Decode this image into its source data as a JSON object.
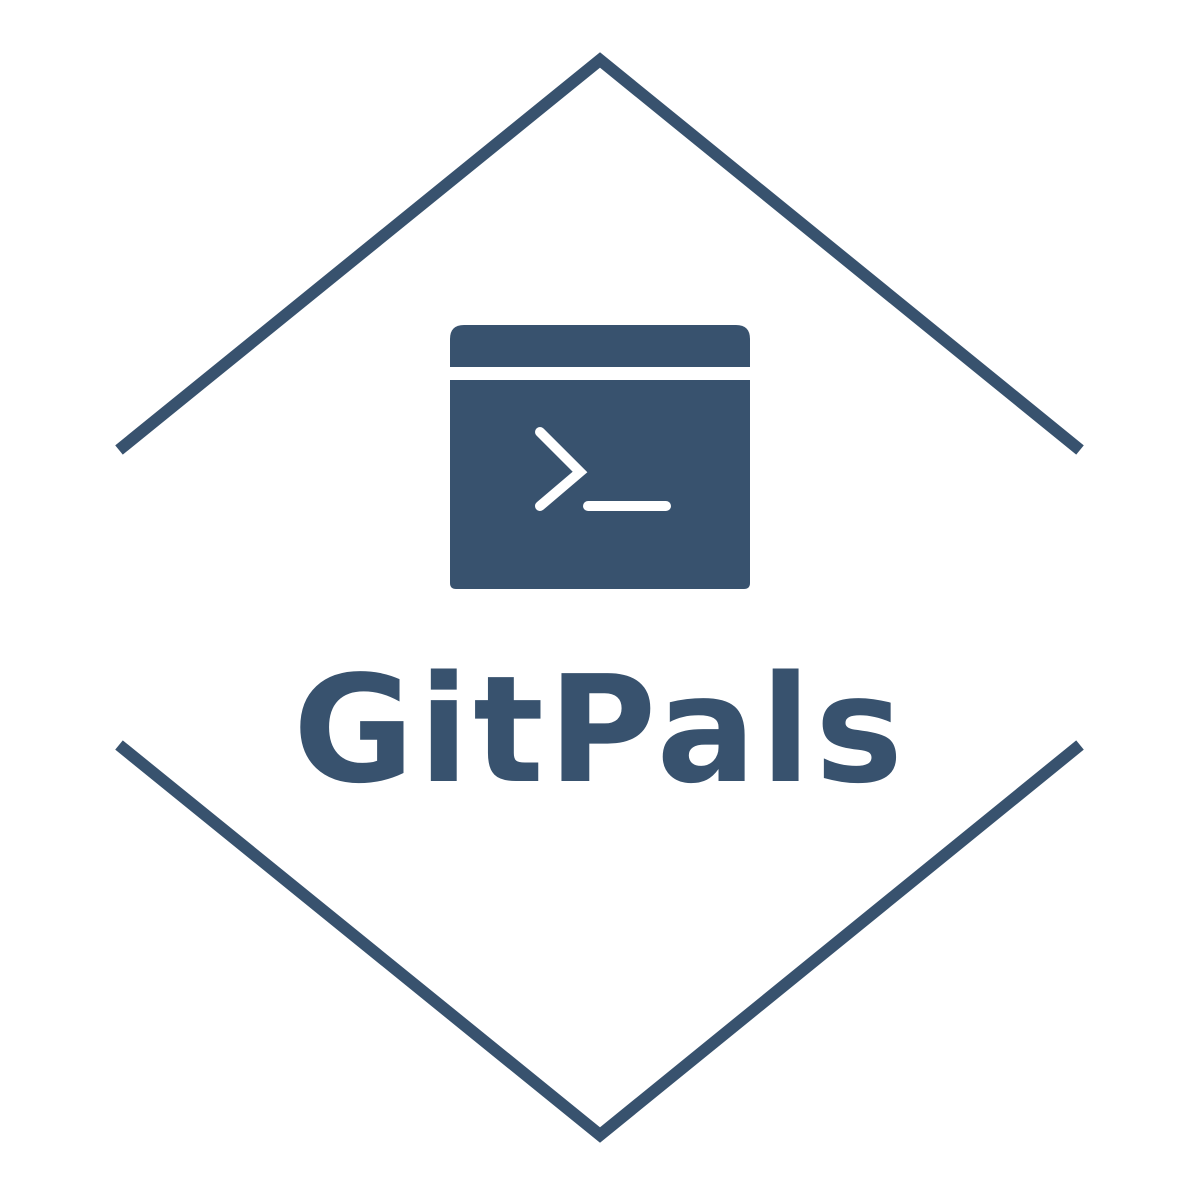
{
  "brand": {
    "name": "GitPals",
    "color": "#38526e",
    "background": "#ffffff"
  },
  "emblem": {
    "icon": "terminal-window-icon",
    "frame": "diamond-frame"
  }
}
